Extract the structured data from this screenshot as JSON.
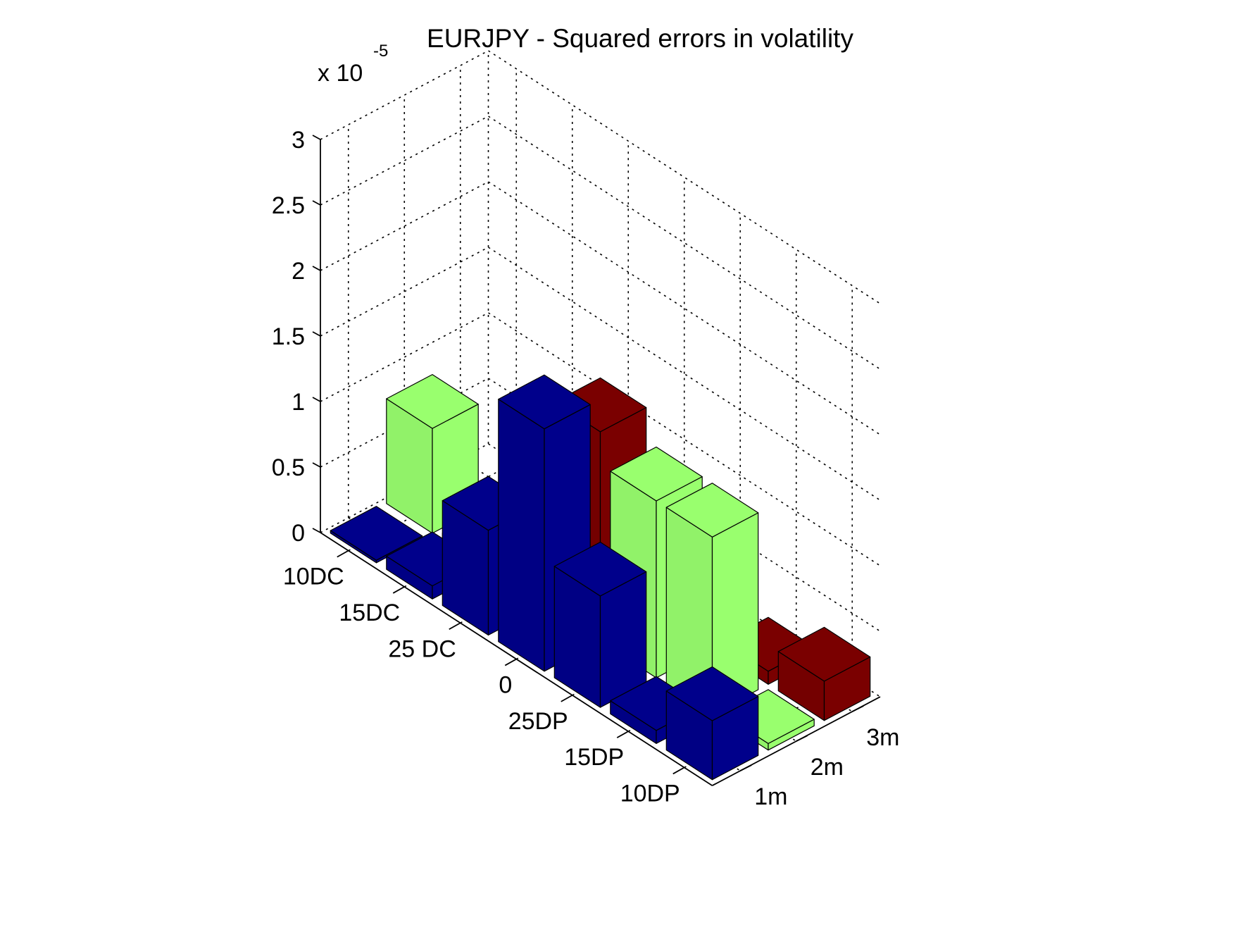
{
  "chart_data": {
    "type": "bar3",
    "title": "EURJPY - Squared errors in volatility",
    "z_exponent_base": "x 10",
    "z_exponent_power": "-5",
    "xlabel": "",
    "ylabel": "",
    "zlabel": "",
    "row_categories": [
      "10DC",
      "15DC",
      "25 DC",
      "0",
      "25DP",
      "15DP",
      "10DP"
    ],
    "column_categories": [
      "1m",
      "2m",
      "3m"
    ],
    "z_ticks": [
      "0",
      "0.5",
      "1",
      "1.5",
      "2",
      "2.5",
      "3"
    ],
    "zlim": [
      0,
      3
    ],
    "grid": true,
    "series": [
      {
        "column": "1m",
        "color": "#00008b",
        "values": [
          0.02,
          0.1,
          0.8,
          1.85,
          0.85,
          0.1,
          0.45
        ]
      },
      {
        "column": "2m",
        "color": "#99ff6e",
        "values": [
          0.8,
          0.05,
          0.0,
          0.0,
          1.35,
          1.35,
          0.05
        ]
      },
      {
        "column": "3m",
        "color": "#7a0000",
        "values": [
          0.0,
          0.0,
          1.1,
          0.55,
          0.0,
          0.1,
          0.3
        ]
      }
    ]
  }
}
